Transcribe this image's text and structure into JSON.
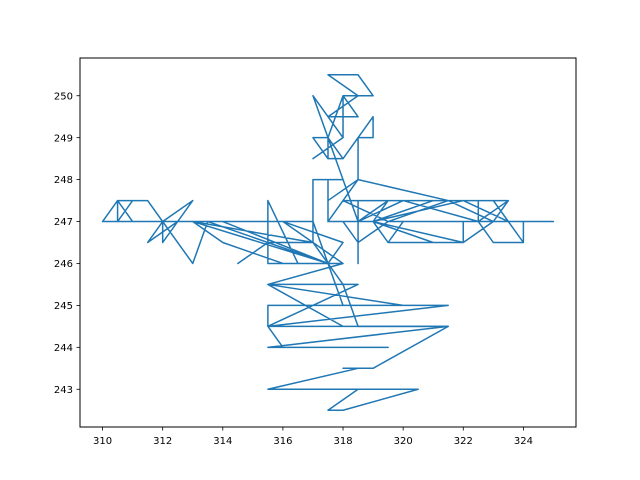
{
  "chart_data": {
    "type": "line",
    "title": "",
    "xlabel": "",
    "ylabel": "",
    "xlim": [
      309.25,
      325.75
    ],
    "ylim": [
      242.1,
      250.9
    ],
    "xticks": [
      310,
      312,
      314,
      316,
      318,
      320,
      322,
      324
    ],
    "yticks": [
      243,
      244,
      245,
      246,
      247,
      248,
      249,
      250
    ],
    "grid": false,
    "legend": "none",
    "series": [
      {
        "color": "#1f77b4",
        "points": [
          [
            312.0,
            247.0
          ],
          [
            313.0,
            247.5
          ],
          [
            312.0,
            246.5
          ],
          [
            312.0,
            247.0
          ],
          [
            311.5,
            247.5
          ],
          [
            310.5,
            247.5
          ],
          [
            310.5,
            247.0
          ],
          [
            311.0,
            247.5
          ],
          [
            311.5,
            247.5
          ],
          [
            312.0,
            247.0
          ],
          [
            310.0,
            247.0
          ],
          [
            310.5,
            247.5
          ],
          [
            311.0,
            247.0
          ],
          [
            315.5,
            247.0
          ],
          [
            315.5,
            246.5
          ],
          [
            314.5,
            246.0
          ],
          [
            315.5,
            246.5
          ],
          [
            317.0,
            246.5
          ],
          [
            313.0,
            247.0
          ],
          [
            317.5,
            246.0
          ],
          [
            316.5,
            246.0
          ],
          [
            315.5,
            247.5
          ],
          [
            315.5,
            246.0
          ],
          [
            316.0,
            246.0
          ],
          [
            314.0,
            246.5
          ],
          [
            313.0,
            247.0
          ],
          [
            317.0,
            247.0
          ],
          [
            317.5,
            246.0
          ],
          [
            313.5,
            247.0
          ],
          [
            313.0,
            246.0
          ],
          [
            312.0,
            247.0
          ],
          [
            311.5,
            246.5
          ],
          [
            312.5,
            247.0
          ],
          [
            314.0,
            247.0
          ],
          [
            317.5,
            246.0
          ],
          [
            316.0,
            246.0
          ],
          [
            318.0,
            246.0
          ],
          [
            315.5,
            245.5
          ],
          [
            318.5,
            245.5
          ],
          [
            315.5,
            244.5
          ],
          [
            318.0,
            244.5
          ],
          [
            315.5,
            245.5
          ],
          [
            320.0,
            245.0
          ],
          [
            317.5,
            245.0
          ],
          [
            321.5,
            245.0
          ],
          [
            315.5,
            244.5
          ],
          [
            321.5,
            244.5
          ],
          [
            315.5,
            244.0
          ],
          [
            319.5,
            244.0
          ],
          [
            316.0,
            244.0
          ],
          [
            315.5,
            244.5
          ],
          [
            315.5,
            245.0
          ],
          [
            318.0,
            245.0
          ],
          [
            317.5,
            246.0
          ],
          [
            318.0,
            246.5
          ],
          [
            316.0,
            247.0
          ],
          [
            318.0,
            246.0
          ],
          [
            317.5,
            246.0
          ],
          [
            317.0,
            246.5
          ],
          [
            317.0,
            248.0
          ],
          [
            318.0,
            248.0
          ],
          [
            317.5,
            248.0
          ],
          [
            317.5,
            247.0
          ],
          [
            318.0,
            247.5
          ],
          [
            317.5,
            247.0
          ],
          [
            318.5,
            247.0
          ],
          [
            318.5,
            247.5
          ],
          [
            319.5,
            247.5
          ],
          [
            323.5,
            247.5
          ],
          [
            323.0,
            247.0
          ],
          [
            325.0,
            247.0
          ],
          [
            324.0,
            247.0
          ],
          [
            324.0,
            246.5
          ],
          [
            323.0,
            247.5
          ],
          [
            323.5,
            247.0
          ],
          [
            322.0,
            247.5
          ],
          [
            319.0,
            247.0
          ],
          [
            321.0,
            247.5
          ],
          [
            322.5,
            247.5
          ],
          [
            322.5,
            247.0
          ],
          [
            325.0,
            247.0
          ],
          [
            322.5,
            247.0
          ],
          [
            320.0,
            247.5
          ],
          [
            318.5,
            247.0
          ],
          [
            318.0,
            248.0
          ],
          [
            317.0,
            250.0
          ],
          [
            318.0,
            249.0
          ],
          [
            317.0,
            248.5
          ],
          [
            318.0,
            249.0
          ],
          [
            318.0,
            250.0
          ],
          [
            319.0,
            250.0
          ],
          [
            318.5,
            250.5
          ],
          [
            317.5,
            250.5
          ],
          [
            318.5,
            250.0
          ],
          [
            317.5,
            249.5
          ],
          [
            318.5,
            249.5
          ],
          [
            318.0,
            250.0
          ],
          [
            317.5,
            249.0
          ],
          [
            318.0,
            248.5
          ],
          [
            317.5,
            248.5
          ],
          [
            317.5,
            249.0
          ],
          [
            317.0,
            249.0
          ],
          [
            317.5,
            248.5
          ],
          [
            318.0,
            248.5
          ],
          [
            318.5,
            249.0
          ],
          [
            319.0,
            249.5
          ],
          [
            319.0,
            249.0
          ],
          [
            318.5,
            249.0
          ],
          [
            318.5,
            248.0
          ],
          [
            317.5,
            247.5
          ],
          [
            318.5,
            248.0
          ],
          [
            318.0,
            247.5
          ],
          [
            318.5,
            247.5
          ],
          [
            318.5,
            247.0
          ],
          [
            319.5,
            247.5
          ],
          [
            319.0,
            247.0
          ],
          [
            321.0,
            246.5
          ],
          [
            319.5,
            246.5
          ],
          [
            319.0,
            247.0
          ],
          [
            318.0,
            247.0
          ],
          [
            318.5,
            246.5
          ],
          [
            319.5,
            247.0
          ],
          [
            322.0,
            247.0
          ],
          [
            322.0,
            246.5
          ],
          [
            319.5,
            246.5
          ],
          [
            320.0,
            247.0
          ],
          [
            322.5,
            247.0
          ],
          [
            323.5,
            247.5
          ],
          [
            321.5,
            247.5
          ],
          [
            318.5,
            248.0
          ],
          [
            317.5,
            247.0
          ],
          [
            318.0,
            247.5
          ],
          [
            319.5,
            247.0
          ],
          [
            321.5,
            247.5
          ],
          [
            323.0,
            247.0
          ],
          [
            322.5,
            247.0
          ],
          [
            323.0,
            246.5
          ],
          [
            324.0,
            246.5
          ],
          [
            324.0,
            247.0
          ],
          [
            322.5,
            247.0
          ],
          [
            322.5,
            247.5
          ],
          [
            323.5,
            247.5
          ],
          [
            323.0,
            247.0
          ],
          [
            322.0,
            246.5
          ],
          [
            319.0,
            247.0
          ],
          [
            318.5,
            247.0
          ],
          [
            318.5,
            246.5
          ],
          [
            318.5,
            246.0
          ],
          [
            318.5,
            247.0
          ],
          [
            317.5,
            247.0
          ]
        ]
      },
      {
        "color": "#1f77b4",
        "points": [
          [
            317.5,
            246.0
          ],
          [
            318.0,
            245.5
          ],
          [
            318.5,
            244.5
          ],
          [
            321.5,
            244.5
          ],
          [
            319.0,
            243.5
          ],
          [
            318.0,
            243.5
          ],
          [
            318.5,
            243.5
          ],
          [
            315.5,
            243.0
          ],
          [
            320.5,
            243.0
          ],
          [
            317.0,
            243.0
          ],
          [
            318.5,
            243.0
          ],
          [
            317.5,
            242.5
          ],
          [
            318.0,
            242.5
          ],
          [
            320.5,
            243.0
          ],
          [
            318.0,
            243.0
          ]
        ]
      }
    ]
  }
}
